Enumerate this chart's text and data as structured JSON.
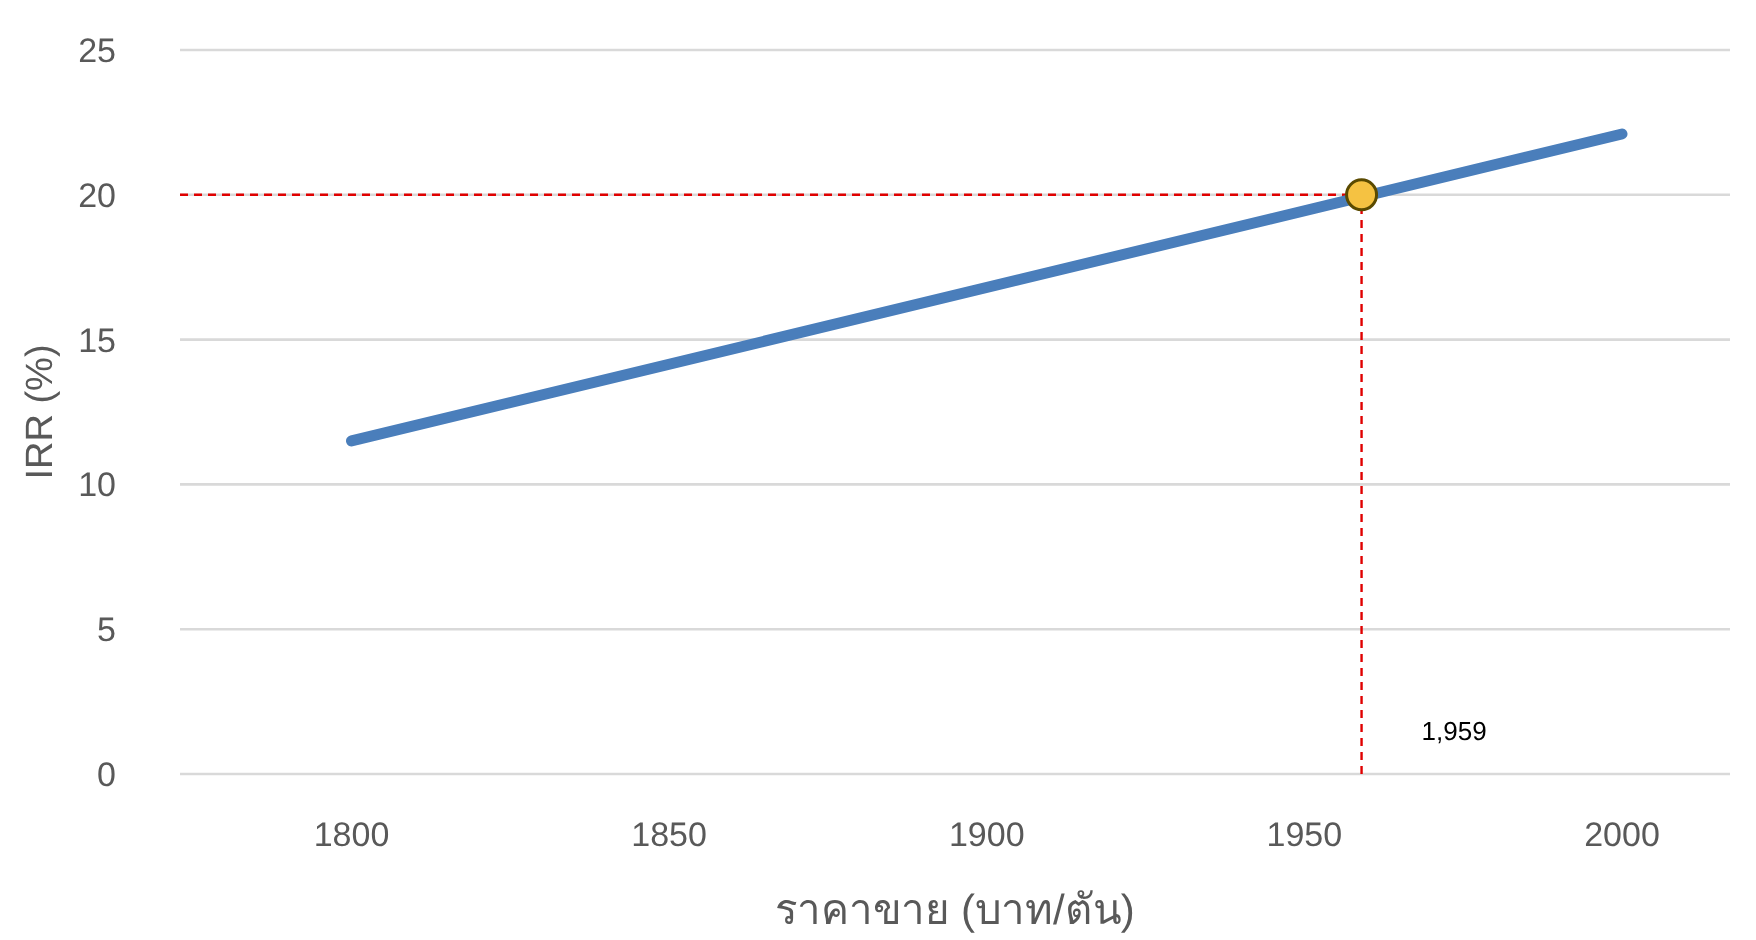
{
  "chart_data": {
    "type": "line",
    "xlabel": "ราคาขาย (บาท/ตัน)",
    "ylabel": "IRR (%)",
    "x": [
      1800,
      2000
    ],
    "series": [
      {
        "color": "#4a7ebb",
        "values": [
          11.5,
          22.1
        ]
      },
      {
        "type": "scatter",
        "x": [
          1959
        ],
        "color": "#f5c242",
        "values": [
          20
        ]
      }
    ],
    "xlim": [
      1773,
      2017
    ],
    "ylim": [
      0,
      25
    ],
    "xticks": [
      1800,
      1850,
      1900,
      1950,
      2000
    ],
    "yticks": [
      0,
      5,
      10,
      15,
      20,
      25
    ],
    "grid": "y",
    "ref_lines": [
      {
        "axis": "x",
        "value": 1959,
        "label": "1,959",
        "color": "#e00000",
        "line_style": "dashed"
      },
      {
        "axis": "y",
        "value": 20,
        "color": "#e00000",
        "line_style": "dashed"
      }
    ]
  }
}
